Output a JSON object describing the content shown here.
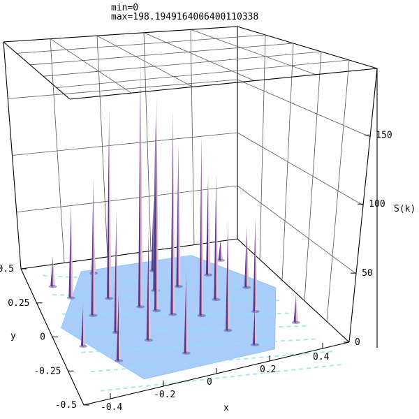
{
  "header": {
    "min_text": "min=0",
    "max_text": "max=198.1949164006400110338"
  },
  "chart_data": {
    "type": "surface3d",
    "title": "",
    "xlabel": "x",
    "ylabel": "y",
    "zlabel": "S(k)",
    "xlim": [
      -0.5,
      0.5
    ],
    "ylim": [
      -0.5,
      0.5
    ],
    "zlim": [
      0,
      198.19
    ],
    "z_min": 0,
    "z_max": 198.19491640064,
    "x_ticks": [
      "-0.4",
      "-0.2",
      "0",
      "0.2",
      "0.4"
    ],
    "y_ticks": [
      "0.5",
      "0.25",
      "0",
      "-0.25",
      "-0.5"
    ],
    "z_ticks": [
      "0",
      "50",
      "100",
      "150"
    ],
    "grid": true,
    "colors": {
      "base": "#a8cdfa",
      "base_dark": "#7ab6f2",
      "ridge": "#8fe4ee",
      "spike_light": "#f2b8cf",
      "spike_dark": "#4d3f8f"
    },
    "peaks": [
      {
        "x": -0.1,
        "y": 0.1,
        "z": 198
      },
      {
        "x": -0.05,
        "y": 0.05,
        "z": 170
      },
      {
        "x": -0.2,
        "y": 0.2,
        "z": 155
      },
      {
        "x": 0.0,
        "y": 0.0,
        "z": 160
      },
      {
        "x": 0.1,
        "y": -0.05,
        "z": 140
      },
      {
        "x": 0.0,
        "y": 0.2,
        "z": 135
      },
      {
        "x": -0.3,
        "y": 0.1,
        "z": 115
      },
      {
        "x": 0.1,
        "y": 0.2,
        "z": 110
      },
      {
        "x": -0.25,
        "y": -0.05,
        "z": 100
      },
      {
        "x": 0.2,
        "y": 0.05,
        "z": 95
      },
      {
        "x": -0.15,
        "y": -0.15,
        "z": 90
      },
      {
        "x": 0.15,
        "y": -0.2,
        "z": 85
      },
      {
        "x": -0.35,
        "y": 0.25,
        "z": 80
      },
      {
        "x": 0.25,
        "y": 0.25,
        "z": 75
      },
      {
        "x": 0.3,
        "y": -0.1,
        "z": 70
      },
      {
        "x": -0.05,
        "y": -0.3,
        "z": 65
      },
      {
        "x": -0.3,
        "y": -0.25,
        "z": 55
      },
      {
        "x": 0.35,
        "y": 0.1,
        "z": 45
      },
      {
        "x": 0.05,
        "y": 0.35,
        "z": 55
      },
      {
        "x": -0.4,
        "y": -0.1,
        "z": 35
      },
      {
        "x": 0.2,
        "y": -0.35,
        "z": 30
      },
      {
        "x": -0.2,
        "y": 0.4,
        "z": 40
      },
      {
        "x": 0.4,
        "y": -0.25,
        "z": 20
      },
      {
        "x": -0.4,
        "y": 0.35,
        "z": 25
      },
      {
        "x": 0.35,
        "y": 0.35,
        "z": 15
      }
    ]
  }
}
